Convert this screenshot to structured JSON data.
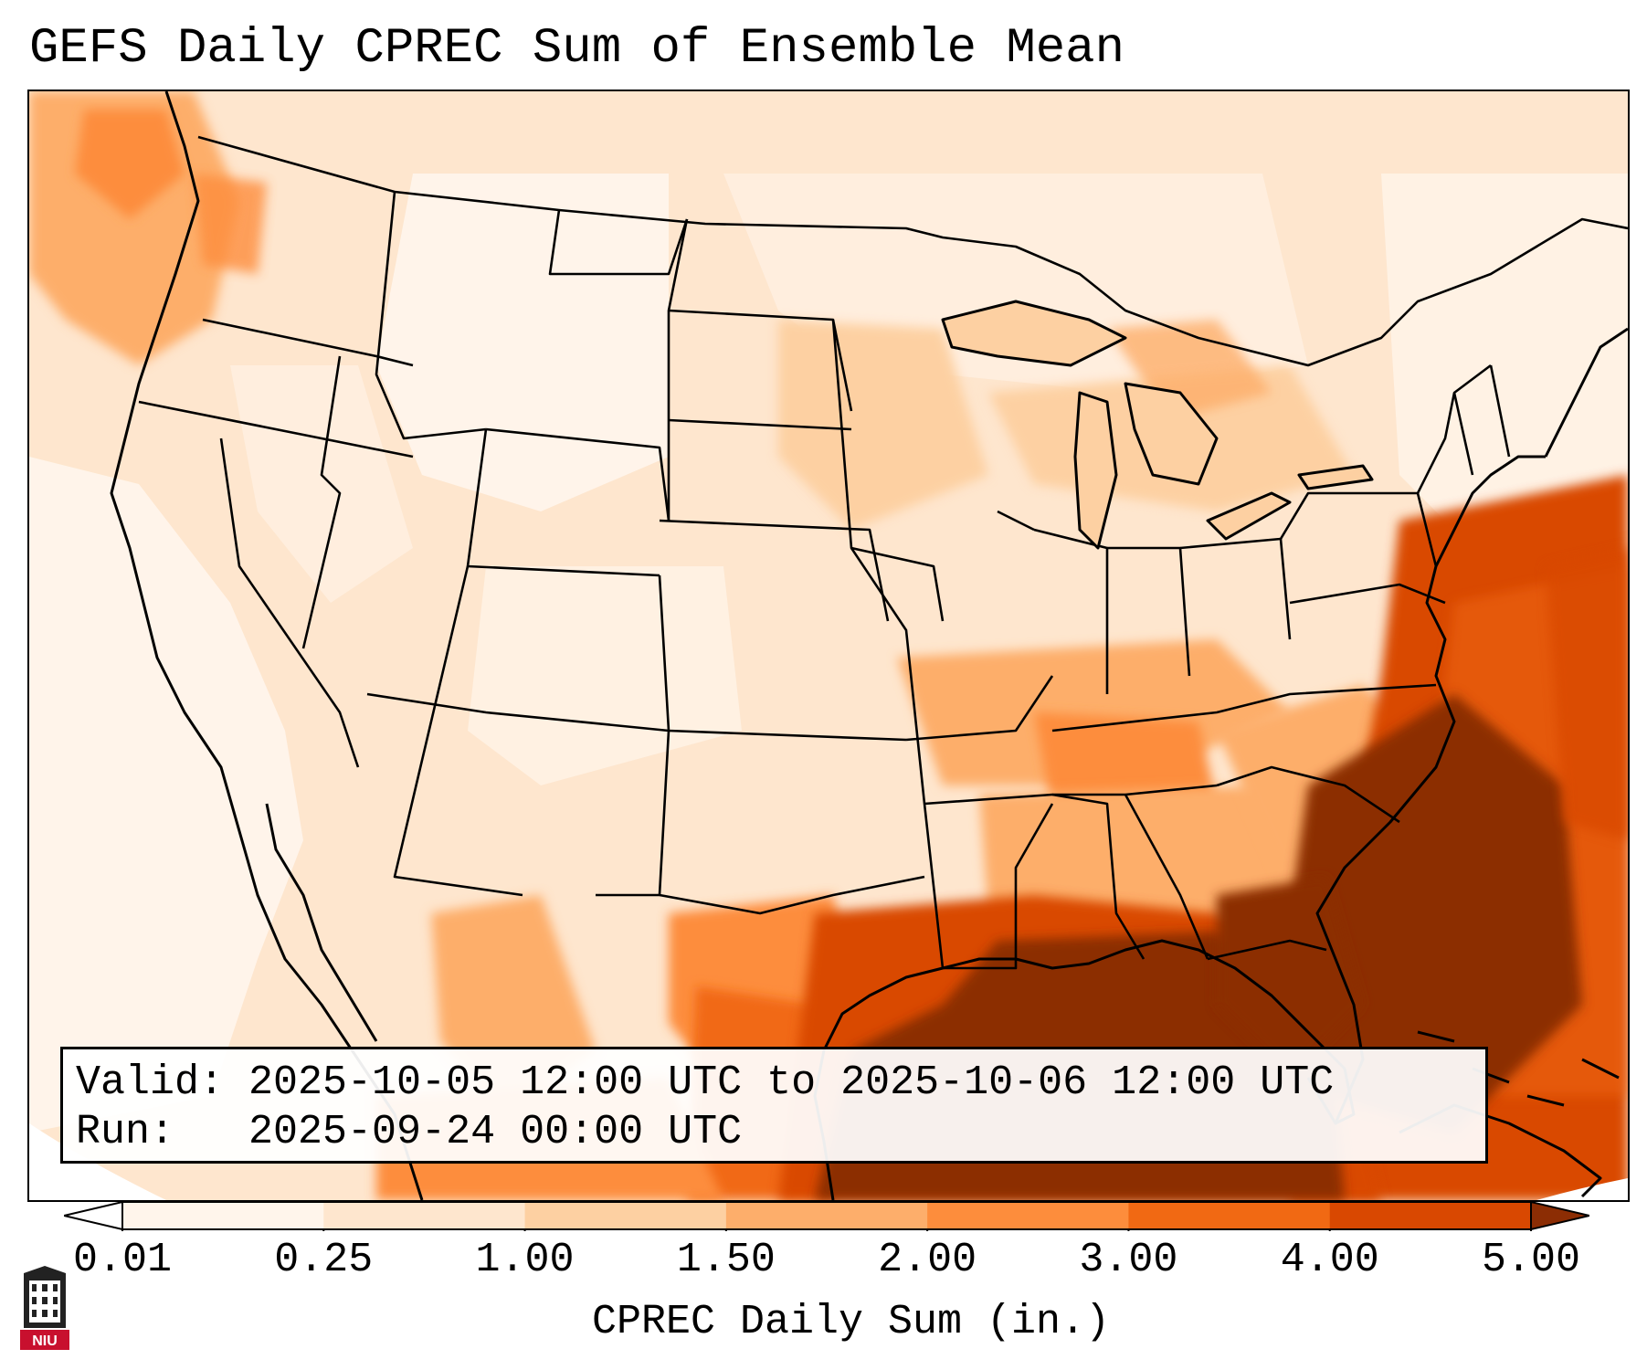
{
  "title": "GEFS Daily CPREC Sum of Ensemble Mean",
  "info": {
    "valid_line": "Valid: 2025-10-05 12:00 UTC to 2025-10-06 12:00 UTC",
    "run_line": "Run:   2025-09-24 00:00 UTC"
  },
  "colorbar": {
    "label": "CPREC Daily Sum (in.)",
    "ticks": [
      "0.01",
      "0.25",
      "1.00",
      "1.50",
      "2.00",
      "3.00",
      "4.00",
      "5.00"
    ],
    "colors": [
      "#fff5eb",
      "#fee6ce",
      "#fdd0a2",
      "#fdae6b",
      "#fd8d3c",
      "#f16913",
      "#d94801",
      "#8c2d04"
    ],
    "extend": "both"
  },
  "logo": {
    "text": "NIU",
    "primary_color": "#c8102e"
  },
  "map": {
    "region": "Continental United States",
    "max_color": "#8c2d04",
    "heavy_area_description": "Gulf of Mexico / Florida / western Atlantic"
  }
}
